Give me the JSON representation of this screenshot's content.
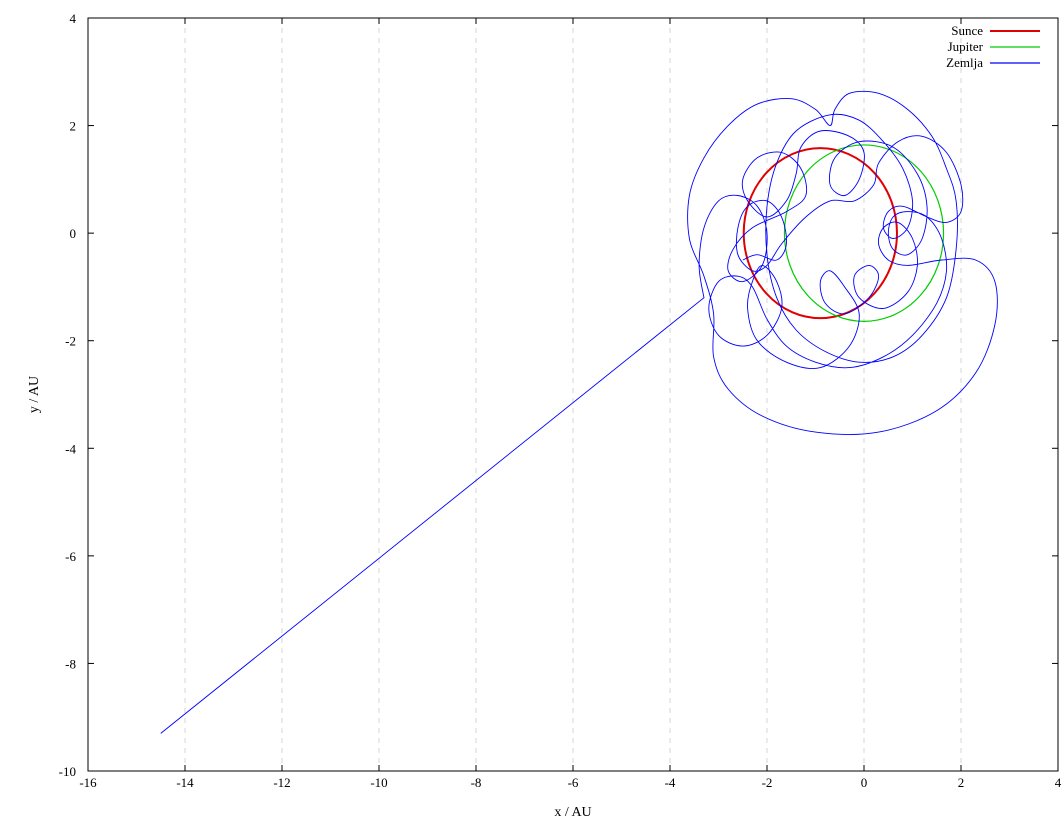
{
  "chart_data": {
    "type": "line",
    "xlabel": "x / AU",
    "ylabel": "y / AU",
    "xlim": [
      -16,
      4
    ],
    "ylim": [
      -10,
      4
    ],
    "xticks": [
      -16,
      -14,
      -12,
      -10,
      -8,
      -6,
      -4,
      -2,
      0,
      2,
      4
    ],
    "yticks": [
      -10,
      -8,
      -6,
      -4,
      -2,
      0,
      2,
      4
    ],
    "grid": "vertical dashed",
    "legend_position": "top-right",
    "series": [
      {
        "name": "Sunce",
        "color": "#e00000",
        "kind": "circle",
        "center": [
          -0.9,
          0.0
        ],
        "radius": 1.58
      },
      {
        "name": "Jupiter",
        "color": "#00cc00",
        "kind": "circle",
        "center": [
          0.0,
          0.0
        ],
        "radius": 1.64
      },
      {
        "name": "Zemlja",
        "color": "#0000ff",
        "kind": "trajectory",
        "points": [
          [
            -14.5,
            -9.3
          ],
          [
            -3.3,
            -1.2
          ],
          [
            -3.4,
            -0.6
          ],
          [
            -3.3,
            0.1
          ],
          [
            -3.0,
            0.6
          ],
          [
            -2.6,
            0.7
          ],
          [
            -2.2,
            0.5
          ],
          [
            -2.0,
            0.0
          ],
          [
            -2.1,
            -0.6
          ],
          [
            -2.5,
            -0.9
          ],
          [
            -2.8,
            -0.7
          ],
          [
            -2.7,
            -0.3
          ],
          [
            -2.3,
            0.1
          ],
          [
            -1.6,
            0.4
          ],
          [
            -1.2,
            0.7
          ],
          [
            -1.3,
            1.2
          ],
          [
            -1.7,
            1.5
          ],
          [
            -2.2,
            1.4
          ],
          [
            -2.5,
            1.0
          ],
          [
            -2.4,
            0.6
          ],
          [
            -2.0,
            0.3
          ],
          [
            -1.6,
            0.6
          ],
          [
            -1.4,
            1.1
          ],
          [
            -1.3,
            1.6
          ],
          [
            -0.9,
            1.9
          ],
          [
            -0.3,
            1.8
          ],
          [
            0.0,
            1.5
          ],
          [
            -0.1,
            1.0
          ],
          [
            -0.4,
            0.7
          ],
          [
            -0.7,
            0.9
          ],
          [
            -0.6,
            1.4
          ],
          [
            -0.1,
            1.7
          ],
          [
            0.6,
            1.6
          ],
          [
            1.1,
            1.1
          ],
          [
            1.3,
            0.5
          ],
          [
            1.2,
            -0.1
          ],
          [
            0.9,
            -0.4
          ],
          [
            0.6,
            -0.3
          ],
          [
            0.5,
            0.0
          ],
          [
            0.6,
            0.3
          ],
          [
            0.9,
            0.4
          ],
          [
            1.3,
            0.3
          ],
          [
            1.6,
            -0.1
          ],
          [
            1.7,
            -0.7
          ],
          [
            1.5,
            -1.3
          ],
          [
            1.0,
            -1.9
          ],
          [
            0.4,
            -2.3
          ],
          [
            -0.3,
            -2.5
          ],
          [
            -1.0,
            -2.4
          ],
          [
            -1.6,
            -2.1
          ],
          [
            -2.0,
            -1.6
          ],
          [
            -2.3,
            -1.0
          ],
          [
            -2.6,
            -0.8
          ],
          [
            -3.0,
            -0.9
          ],
          [
            -3.2,
            -1.4
          ],
          [
            -3.0,
            -1.9
          ],
          [
            -2.5,
            -2.1
          ],
          [
            -2.0,
            -1.9
          ],
          [
            -1.7,
            -1.4
          ],
          [
            -1.8,
            -0.9
          ],
          [
            -2.1,
            -0.6
          ],
          [
            -2.3,
            -0.9
          ],
          [
            -2.4,
            -1.4
          ],
          [
            -2.2,
            -2.0
          ],
          [
            -1.6,
            -2.4
          ],
          [
            -0.9,
            -2.5
          ],
          [
            -0.3,
            -2.1
          ],
          [
            -0.1,
            -1.5
          ],
          [
            -0.4,
            -1.0
          ],
          [
            -0.7,
            -0.7
          ],
          [
            -0.9,
            -0.9
          ],
          [
            -0.8,
            -1.3
          ],
          [
            -0.4,
            -1.5
          ],
          [
            0.1,
            -1.2
          ],
          [
            0.3,
            -0.8
          ],
          [
            0.1,
            -0.6
          ],
          [
            -0.2,
            -0.8
          ],
          [
            -0.1,
            -1.2
          ],
          [
            0.4,
            -1.4
          ],
          [
            0.9,
            -1.1
          ],
          [
            1.1,
            -0.6
          ],
          [
            1.0,
            -0.1
          ],
          [
            0.7,
            0.2
          ],
          [
            0.4,
            0.1
          ],
          [
            0.3,
            -0.2
          ],
          [
            0.5,
            -0.5
          ],
          [
            0.9,
            -0.6
          ],
          [
            1.6,
            -0.5
          ],
          [
            2.3,
            -0.5
          ],
          [
            2.7,
            -0.9
          ],
          [
            2.7,
            -1.7
          ],
          [
            2.3,
            -2.6
          ],
          [
            1.5,
            -3.3
          ],
          [
            0.3,
            -3.7
          ],
          [
            -1.0,
            -3.7
          ],
          [
            -2.1,
            -3.4
          ],
          [
            -2.8,
            -2.9
          ],
          [
            -3.1,
            -2.3
          ],
          [
            -3.1,
            -1.5
          ],
          [
            -3.3,
            -0.8
          ],
          [
            -3.6,
            -0.1
          ],
          [
            -3.6,
            0.7
          ],
          [
            -3.3,
            1.4
          ],
          [
            -2.8,
            2.0
          ],
          [
            -2.2,
            2.4
          ],
          [
            -1.5,
            2.5
          ],
          [
            -1.0,
            2.3
          ],
          [
            -0.7,
            2.0
          ],
          [
            -0.6,
            2.3
          ],
          [
            -0.3,
            2.6
          ],
          [
            0.3,
            2.6
          ],
          [
            0.9,
            2.3
          ],
          [
            1.4,
            1.8
          ],
          [
            1.7,
            1.2
          ],
          [
            1.9,
            0.6
          ],
          [
            1.9,
            -0.3
          ],
          [
            1.7,
            -1.2
          ],
          [
            1.2,
            -1.9
          ],
          [
            0.6,
            -2.3
          ],
          [
            -0.1,
            -2.4
          ],
          [
            -0.8,
            -2.2
          ],
          [
            -1.4,
            -1.8
          ],
          [
            -1.8,
            -1.2
          ],
          [
            -2.0,
            -0.4
          ],
          [
            -2.0,
            0.5
          ],
          [
            -1.8,
            1.3
          ],
          [
            -1.4,
            1.9
          ],
          [
            -0.7,
            2.2
          ],
          [
            -0.1,
            2.1
          ],
          [
            0.4,
            1.7
          ],
          [
            0.8,
            1.2
          ],
          [
            1.0,
            0.6
          ],
          [
            0.9,
            0.1
          ],
          [
            0.6,
            -0.1
          ],
          [
            0.4,
            0.1
          ],
          [
            0.5,
            0.4
          ],
          [
            0.8,
            0.5
          ],
          [
            1.3,
            0.3
          ],
          [
            1.7,
            0.2
          ],
          [
            2.0,
            0.4
          ],
          [
            2.0,
            0.9
          ],
          [
            1.7,
            1.5
          ],
          [
            1.2,
            1.8
          ],
          [
            0.7,
            1.7
          ],
          [
            0.3,
            1.3
          ],
          [
            0.2,
            0.9
          ],
          [
            -0.2,
            0.6
          ],
          [
            -0.7,
            0.6
          ],
          [
            -1.2,
            0.3
          ],
          [
            -1.7,
            -0.2
          ],
          [
            -2.0,
            -0.6
          ],
          [
            -2.3,
            -0.7
          ],
          [
            -2.6,
            -0.4
          ],
          [
            -2.6,
            0.1
          ],
          [
            -2.4,
            0.5
          ],
          [
            -2.0,
            0.6
          ],
          [
            -1.7,
            0.3
          ],
          [
            -1.6,
            -0.2
          ],
          [
            -1.8,
            -0.5
          ],
          [
            -2.2,
            -0.4
          ],
          [
            -2.5,
            -0.5
          ]
        ]
      }
    ]
  }
}
